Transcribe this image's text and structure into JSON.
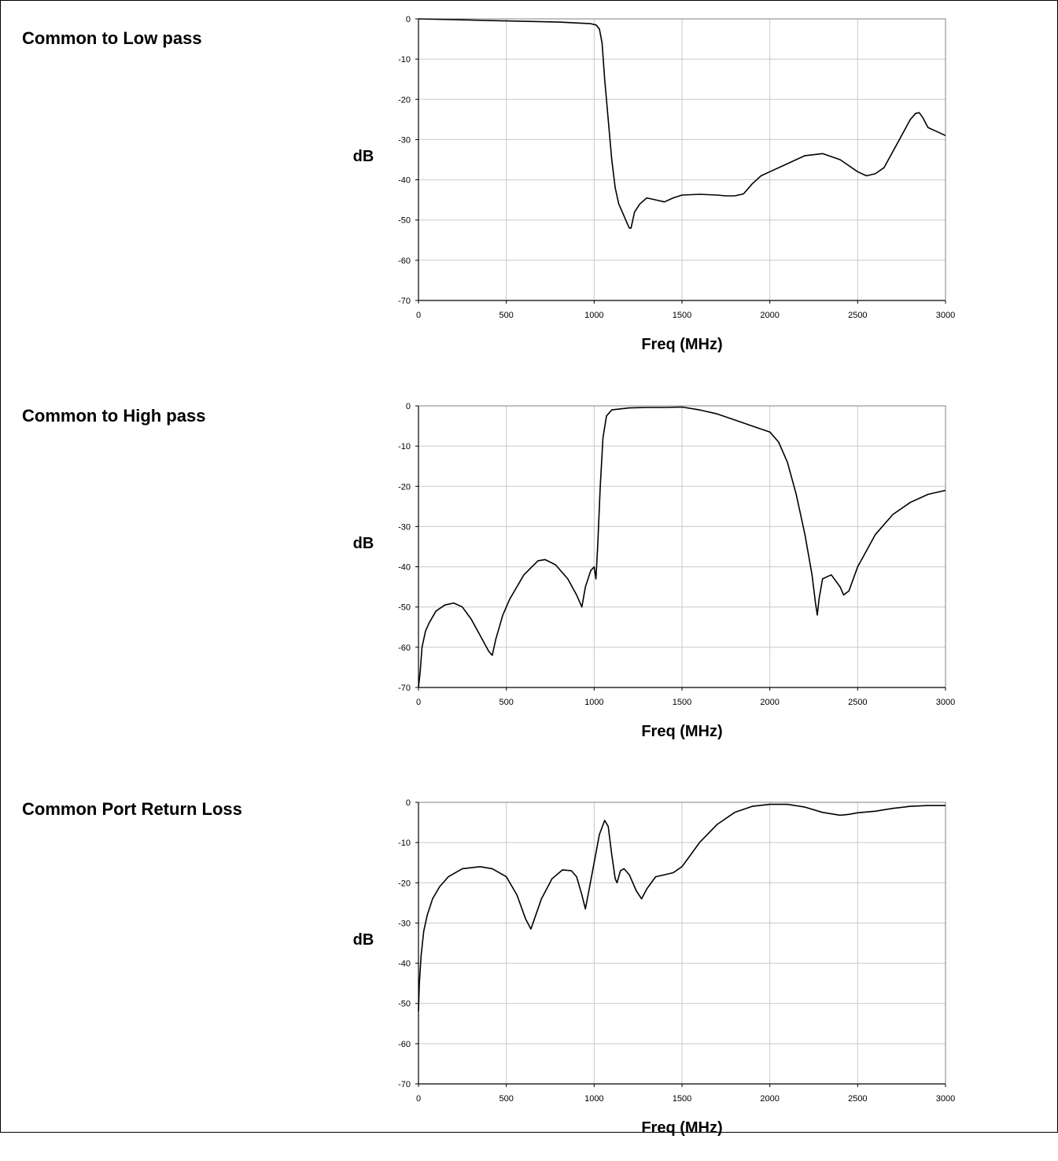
{
  "chart_data": [
    {
      "type": "line",
      "title": "Common to Low pass",
      "xlabel": "Freq (MHz)",
      "ylabel": "dB",
      "xlim": [
        0,
        3000
      ],
      "ylim": [
        -70,
        0
      ],
      "x_ticks": [
        "0",
        "500",
        "1000",
        "1500",
        "2000",
        "2500",
        "3000"
      ],
      "y_ticks": [
        "0",
        "-10",
        "-20",
        "-30",
        "-40",
        "-50",
        "-60",
        "-70"
      ],
      "grid": true,
      "series": [
        {
          "x": [
            0,
            200,
            500,
            800,
            980,
            1010,
            1030,
            1045,
            1060,
            1080,
            1100,
            1120,
            1140,
            1160,
            1180,
            1200,
            1210,
            1230,
            1260,
            1300,
            1350,
            1400,
            1450,
            1500,
            1550,
            1600,
            1700,
            1750,
            1800,
            1850,
            1900,
            1950,
            2000,
            2100,
            2200,
            2300,
            2400,
            2500,
            2550,
            2600,
            2650,
            2700,
            2750,
            2800,
            2830,
            2850,
            2870,
            2900,
            2950,
            3000
          ],
          "y": [
            0,
            -0.2,
            -0.5,
            -0.8,
            -1.2,
            -1.5,
            -2.5,
            -6,
            -15,
            -25,
            -35,
            -42,
            -46,
            -48,
            -50,
            -52,
            -52,
            -48,
            -46,
            -44.5,
            -45,
            -45.5,
            -44.5,
            -43.8,
            -43.7,
            -43.6,
            -43.8,
            -44,
            -44,
            -43.5,
            -41,
            -39,
            -38,
            -36,
            -34,
            -33.5,
            -35,
            -38,
            -39,
            -38.5,
            -37,
            -33,
            -29,
            -25,
            -23.5,
            -23.3,
            -24.5,
            -27,
            -28,
            -29
          ]
        }
      ]
    },
    {
      "type": "line",
      "title": "Common to High pass",
      "xlabel": "Freq (MHz)",
      "ylabel": "dB",
      "xlim": [
        0,
        3000
      ],
      "ylim": [
        -70,
        0
      ],
      "x_ticks": [
        "0",
        "500",
        "1000",
        "1500",
        "2000",
        "2500",
        "3000"
      ],
      "y_ticks": [
        "0",
        "-10",
        "-20",
        "-30",
        "-40",
        "-50",
        "-60",
        "-70"
      ],
      "grid": true,
      "series": [
        {
          "x": [
            0,
            10,
            20,
            40,
            60,
            100,
            150,
            200,
            250,
            300,
            350,
            400,
            420,
            440,
            480,
            520,
            600,
            680,
            720,
            780,
            850,
            900,
            930,
            950,
            980,
            1000,
            1010,
            1020,
            1035,
            1050,
            1070,
            1100,
            1200,
            1300,
            1400,
            1500,
            1600,
            1700,
            1800,
            1900,
            2000,
            2050,
            2100,
            2150,
            2200,
            2240,
            2260,
            2270,
            2280,
            2300,
            2350,
            2400,
            2420,
            2450,
            2500,
            2600,
            2700,
            2800,
            2900,
            3000
          ],
          "y": [
            -70,
            -66,
            -60,
            -56,
            -54,
            -51,
            -49.5,
            -49,
            -50,
            -53,
            -57,
            -61,
            -62,
            -58,
            -52,
            -48,
            -42,
            -38.5,
            -38.2,
            -39.5,
            -43,
            -47,
            -50,
            -45,
            -41,
            -40,
            -43,
            -35,
            -20,
            -8,
            -2.5,
            -1,
            -0.5,
            -0.4,
            -0.4,
            -0.3,
            -1,
            -2,
            -3.5,
            -5,
            -6.5,
            -9,
            -14,
            -22,
            -32,
            -42,
            -49,
            -52,
            -48,
            -43,
            -42,
            -45,
            -47,
            -46,
            -40,
            -32,
            -27,
            -24,
            -22,
            -21
          ]
        }
      ]
    },
    {
      "type": "line",
      "title": "Common Port Return Loss",
      "xlabel": "Freq (MHz)",
      "ylabel": "dB",
      "xlim": [
        0,
        3000
      ],
      "ylim": [
        -70,
        0
      ],
      "x_ticks": [
        "0",
        "500",
        "1000",
        "1500",
        "2000",
        "2500",
        "3000"
      ],
      "y_ticks": [
        "0",
        "-10",
        "-20",
        "-30",
        "-40",
        "-50",
        "-60",
        "-70"
      ],
      "grid": true,
      "series": [
        {
          "x": [
            0,
            5,
            15,
            30,
            50,
            80,
            120,
            170,
            250,
            350,
            420,
            500,
            560,
            610,
            640,
            660,
            700,
            760,
            820,
            870,
            900,
            930,
            950,
            970,
            1000,
            1030,
            1060,
            1080,
            1100,
            1120,
            1130,
            1150,
            1170,
            1200,
            1240,
            1270,
            1300,
            1350,
            1400,
            1450,
            1500,
            1550,
            1600,
            1700,
            1800,
            1900,
            2000,
            2100,
            2200,
            2300,
            2400,
            2450,
            2500,
            2600,
            2700,
            2800,
            2900,
            3000
          ],
          "y": [
            -52,
            -45,
            -38,
            -32,
            -28,
            -24,
            -21,
            -18.5,
            -16.5,
            -16,
            -16.5,
            -18.5,
            -23,
            -29,
            -31.5,
            -29,
            -24,
            -19,
            -16.8,
            -17,
            -18.5,
            -23,
            -26.5,
            -22,
            -15,
            -8,
            -4.5,
            -6,
            -13,
            -19,
            -20,
            -17,
            -16.5,
            -18,
            -22,
            -24,
            -21.5,
            -18.5,
            -18,
            -17.5,
            -16,
            -13,
            -10,
            -5.5,
            -2.5,
            -1,
            -0.5,
            -0.5,
            -1.2,
            -2.5,
            -3.2,
            -3,
            -2.6,
            -2.2,
            -1.5,
            -1,
            -0.8,
            -0.8
          ]
        }
      ]
    }
  ]
}
